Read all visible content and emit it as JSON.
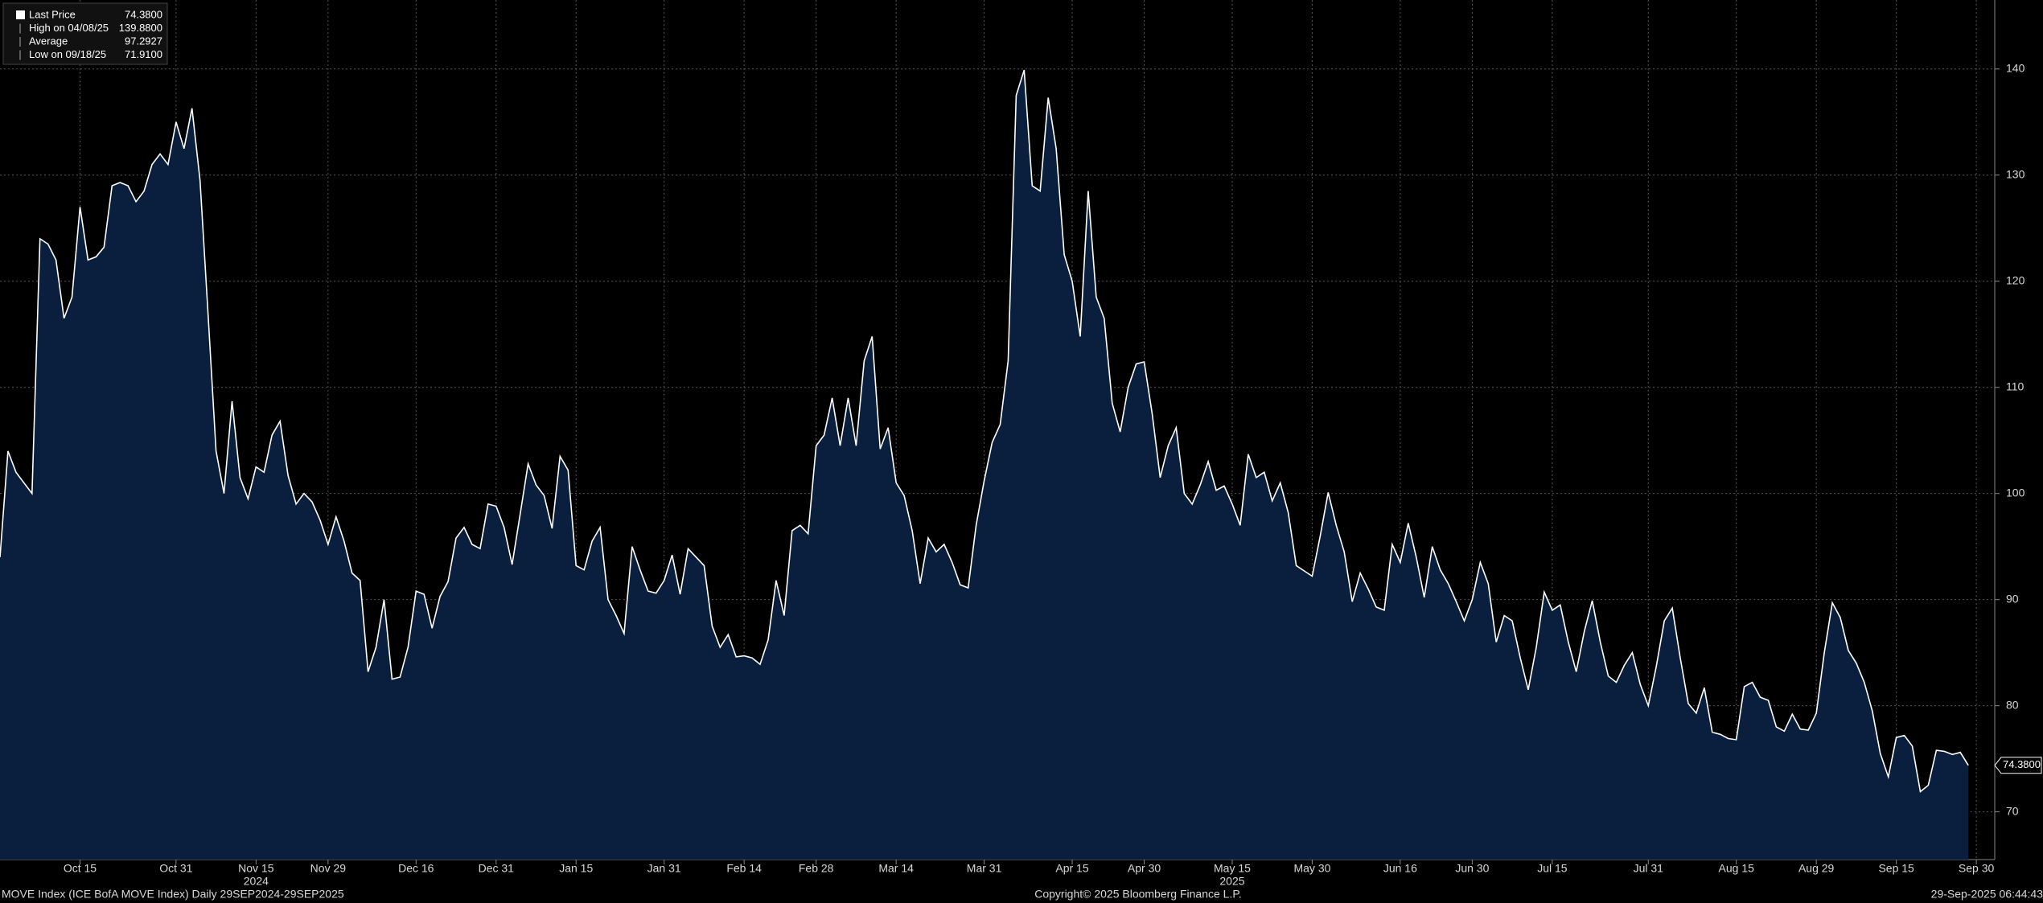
{
  "chart_data": {
    "type": "area",
    "color": "#0a1f3d",
    "line_color": "#ffffff",
    "grid": true,
    "legend": [
      {
        "label": "Last Price",
        "value_label": "74.3800"
      },
      {
        "label": "High on 04/08/25",
        "value_label": "139.8800"
      },
      {
        "label": "Average",
        "value_label": "97.2927"
      },
      {
        "label": "Low on 09/18/25",
        "value_label": "71.9100"
      }
    ],
    "last_value_label": "74.3800",
    "footer_left": "MOVE Index (ICE BofA MOVE Index)  Daily 29SEP2024-29SEP2025",
    "footer_center": "Copyright© 2025 Bloomberg Finance L.P.",
    "footer_right": "29-Sep-2025 06:44:43",
    "xlim": [
      0,
      249.3
    ],
    "ylim": [
      65.5,
      146.5
    ],
    "yticks": [
      70,
      80,
      90,
      100,
      110,
      120,
      130,
      140
    ],
    "xticks": [
      {
        "value": 10,
        "label": "Oct 15"
      },
      {
        "value": 22,
        "label": "Oct 31"
      },
      {
        "value": 32,
        "label": "Nov 15"
      },
      {
        "value": 41,
        "label": "Nov 29"
      },
      {
        "value": 52,
        "label": "Dec 16"
      },
      {
        "value": 62,
        "label": "Dec 31"
      },
      {
        "value": 72,
        "label": "Jan 15"
      },
      {
        "value": 83,
        "label": "Jan 31"
      },
      {
        "value": 93,
        "label": "Feb 14"
      },
      {
        "value": 102,
        "label": "Feb 28"
      },
      {
        "value": 112,
        "label": "Mar 14"
      },
      {
        "value": 123,
        "label": "Mar 31"
      },
      {
        "value": 134,
        "label": "Apr 15"
      },
      {
        "value": 143,
        "label": "Apr 30"
      },
      {
        "value": 154,
        "label": "May 15"
      },
      {
        "value": 164,
        "label": "May 30"
      },
      {
        "value": 175,
        "label": "Jun 16"
      },
      {
        "value": 184,
        "label": "Jun 30"
      },
      {
        "value": 194,
        "label": "Jul 15"
      },
      {
        "value": 206,
        "label": "Jul 31"
      },
      {
        "value": 217,
        "label": "Aug 15"
      },
      {
        "value": 227,
        "label": "Aug 29"
      },
      {
        "value": 237,
        "label": "Sep 15"
      },
      {
        "value": 247,
        "label": "Sep 30"
      }
    ],
    "year_labels": [
      {
        "value": 32,
        "label": "2024"
      },
      {
        "value": 154,
        "label": "2025"
      }
    ],
    "x": [
      0,
      1,
      2,
      3,
      4,
      5,
      6,
      7,
      8,
      9,
      10,
      11,
      12,
      13,
      14,
      15,
      16,
      17,
      18,
      19,
      20,
      21,
      22,
      23,
      24,
      25,
      26,
      27,
      28,
      29,
      30,
      31,
      32,
      33,
      34,
      35,
      36,
      37,
      38,
      39,
      40,
      41,
      42,
      43,
      44,
      45,
      46,
      47,
      48,
      49,
      50,
      51,
      52,
      53,
      54,
      55,
      56,
      57,
      58,
      59,
      60,
      61,
      62,
      63,
      64,
      65,
      66,
      67,
      68,
      69,
      70,
      71,
      72,
      73,
      74,
      75,
      76,
      77,
      78,
      79,
      80,
      81,
      82,
      83,
      84,
      85,
      86,
      87,
      88,
      89,
      90,
      91,
      92,
      93,
      94,
      95,
      96,
      97,
      98,
      99,
      100,
      101,
      102,
      103,
      104,
      105,
      106,
      107,
      108,
      109,
      110,
      111,
      112,
      113,
      114,
      115,
      116,
      117,
      118,
      119,
      120,
      121,
      122,
      123,
      124,
      125,
      126,
      127,
      128,
      129,
      130,
      131,
      132,
      133,
      134,
      135,
      136,
      137,
      138,
      139,
      140,
      141,
      142,
      143,
      144,
      145,
      146,
      147,
      148,
      149,
      150,
      151,
      152,
      153,
      154,
      155,
      156,
      157,
      158,
      159,
      160,
      161,
      162,
      163,
      164,
      165,
      166,
      167,
      168,
      169,
      170,
      171,
      172,
      173,
      174,
      175,
      176,
      177,
      178,
      179,
      180,
      181,
      182,
      183,
      184,
      185,
      186,
      187,
      188,
      189,
      190,
      191,
      192,
      193,
      194,
      195,
      196,
      197,
      198,
      199,
      200,
      201,
      202,
      203,
      204,
      205,
      206,
      207,
      208,
      209,
      210,
      211,
      212,
      213,
      214,
      215,
      216,
      217,
      218,
      219,
      220,
      221,
      222,
      223,
      224,
      225,
      226,
      227,
      228,
      229,
      230,
      231,
      232,
      233,
      234,
      235,
      236,
      237,
      238,
      239,
      240,
      241,
      242,
      243,
      244,
      245,
      246
    ],
    "values": [
      94,
      104,
      102,
      101,
      100,
      124,
      123.5,
      122,
      116.5,
      118.5,
      127,
      122,
      122.3,
      123.2,
      129,
      129.3,
      129,
      127.5,
      128.5,
      131,
      132,
      131,
      135,
      132.5,
      136.3,
      129.5,
      117,
      104,
      100,
      108.7,
      101.5,
      99.5,
      102.5,
      102,
      105.5,
      106.8,
      101.7,
      99,
      100,
      99.2,
      97.5,
      95.2,
      97.8,
      95.5,
      92.5,
      91.8,
      83.2,
      85.5,
      90,
      82.5,
      82.7,
      85.5,
      90.8,
      90.5,
      87.3,
      90.3,
      91.7,
      95.8,
      96.8,
      95.2,
      94.8,
      99,
      98.8,
      96.8,
      93.3,
      98,
      102.8,
      100.8,
      99.8,
      96.7,
      103.5,
      102.2,
      93.2,
      92.8,
      95.5,
      96.8,
      90,
      88.5,
      86.8,
      95,
      92.8,
      90.8,
      90.6,
      91.8,
      94.2,
      90.5,
      94.8,
      94,
      93.2,
      87.5,
      85.5,
      86.7,
      84.6,
      84.7,
      84.5,
      83.9,
      86.2,
      91.8,
      88.5,
      96.5,
      97,
      96.2,
      104.5,
      105.5,
      109,
      104.5,
      109,
      104.5,
      112.5,
      114.8,
      104.2,
      106.2,
      101,
      99.8,
      96.5,
      91.5,
      95.8,
      94.5,
      95.2,
      93.5,
      91.4,
      91.1,
      97,
      101.2,
      104.8,
      106.5,
      112.5,
      137.5,
      139.9,
      129,
      128.5,
      137.3,
      132.5,
      122.5,
      120,
      114.8,
      128.5,
      118.5,
      116.5,
      108.5,
      105.8,
      110,
      112.2,
      112.4,
      107.5,
      101.5,
      104.5,
      106.2,
      100,
      99,
      100.8,
      103,
      100.3,
      100.7,
      99,
      97,
      103.7,
      101.5,
      102,
      99.3,
      101,
      98.2,
      93.2,
      92.7,
      92.2,
      96,
      100.1,
      97,
      94.5,
      89.8,
      92.5,
      91,
      89.3,
      89,
      95.2,
      93.5,
      97.2,
      94,
      90.2,
      95,
      92.8,
      91.5,
      89.8,
      88,
      90,
      93.5,
      91.5,
      86,
      88.5,
      88,
      84.5,
      81.5,
      85.5,
      90.7,
      89,
      89.5,
      86,
      83.2,
      87,
      89.9,
      86,
      82.8,
      82.2,
      83.8,
      85,
      82,
      80,
      83.7,
      88,
      89.2,
      84.5,
      80.2,
      79.3,
      81.7,
      77.5,
      77.3,
      76.9,
      76.8,
      81.8,
      82.2,
      80.8,
      80.5,
      78,
      77.6,
      79.2,
      77.8,
      77.7,
      79.3,
      85,
      89.7,
      88.3,
      85.2,
      84,
      82.2,
      79.5,
      75.5,
      73.3,
      77,
      77.2,
      76.2,
      71.9,
      72.5,
      75.8,
      75.7,
      75.4,
      75.6,
      74.38
    ]
  }
}
